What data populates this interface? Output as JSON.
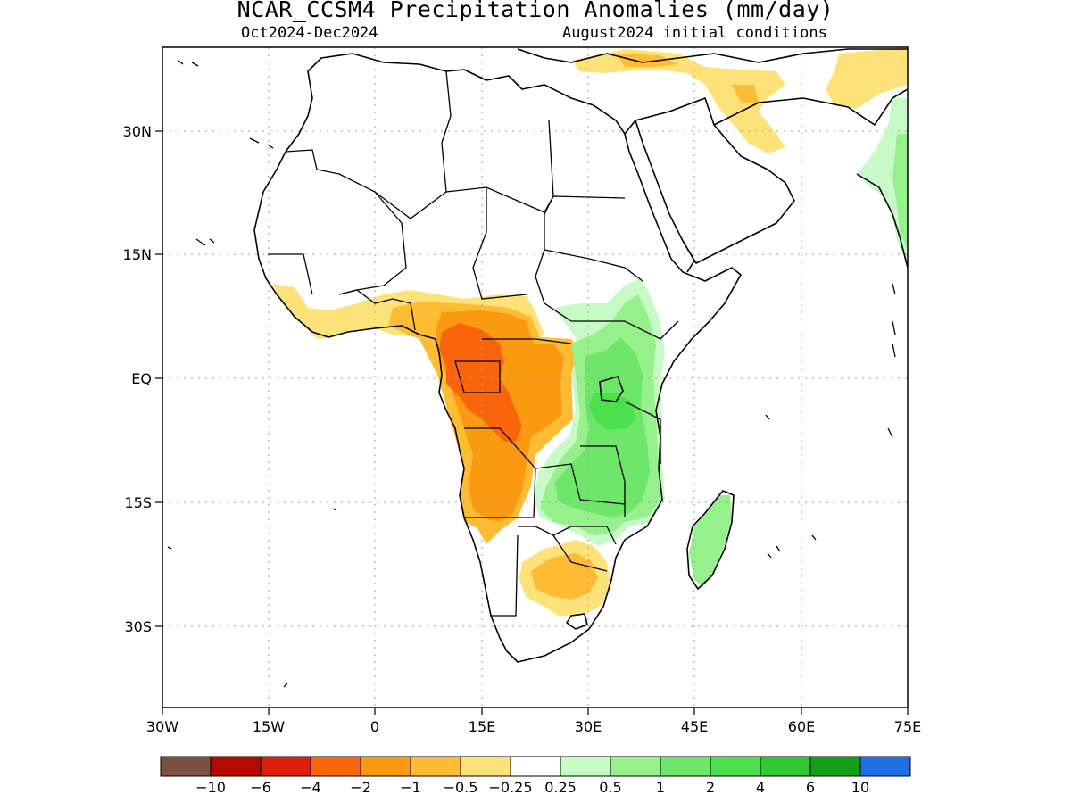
{
  "title": "NCAR_CCSM4 Precipitation Anomalies (mm/day)",
  "period": "Oct2024-Dec2024",
  "initial_conditions": "August2024 initial conditions",
  "lat_labels": [
    "30N",
    "15N",
    "EQ",
    "15S",
    "30S"
  ],
  "lon_labels": [
    "30W",
    "15W",
    "0",
    "15E",
    "30E",
    "45E",
    "60E",
    "75E"
  ],
  "colorbar": {
    "labels": [
      "-10",
      "-6",
      "-4",
      "-2",
      "-1",
      "-0.5",
      "-0.25",
      "0.25",
      "0.5",
      "1",
      "2",
      "4",
      "6",
      "10"
    ],
    "colors": [
      "#7a5040",
      "#b40a00",
      "#dc1e0a",
      "#fa640a",
      "#fa9a10",
      "#fdbc34",
      "#fde27a",
      "#ffffff",
      "#c8fac8",
      "#96f08c",
      "#6ee66a",
      "#4ce04c",
      "#32c832",
      "#14a014",
      "#1e6ee6"
    ]
  },
  "map": {
    "extent": {
      "lon": [
        -30,
        75
      ],
      "lat": [
        -40,
        40
      ]
    },
    "anomaly_regions": [
      {
        "name": "gulf-of-guinea-coast",
        "level": "-0.5 to -0.25",
        "color": "#fde27a"
      },
      {
        "name": "central-africa-west",
        "level": "-1 to -0.5",
        "color": "#fdbc34"
      },
      {
        "name": "congo-basin-core",
        "level": "-2 to -1",
        "color": "#fa9a10"
      },
      {
        "name": "gabon-congo",
        "level": "-4 to -2",
        "color": "#fa640a"
      },
      {
        "name": "angola",
        "level": "-2 to -1",
        "color": "#fa9a10"
      },
      {
        "name": "southern-africa",
        "level": "-1 to -0.5",
        "color": "#fdbc34"
      },
      {
        "name": "mediterranean-middle-east",
        "level": "-1 to -0.5",
        "color": "#fdbc34"
      },
      {
        "name": "east-africa-green",
        "level": "0.5 to 1",
        "color": "#96f08c"
      },
      {
        "name": "east-africa-core",
        "level": "1 to 2",
        "color": "#6ee66a"
      },
      {
        "name": "lake-victoria",
        "level": "2 to 4",
        "color": "#4ce04c"
      },
      {
        "name": "madagascar",
        "level": "0.5 to 1",
        "color": "#96f08c"
      },
      {
        "name": "india-west-coast",
        "level": "0.25 to 0.5",
        "color": "#c8fac8"
      }
    ]
  }
}
